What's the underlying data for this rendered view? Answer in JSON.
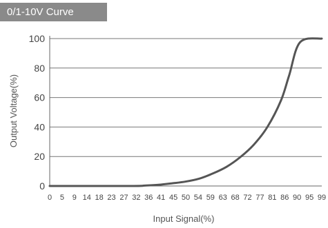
{
  "chart_data": {
    "type": "line",
    "title": "0/1-10V Curve",
    "xlabel": "Input Signal(%)",
    "ylabel": "Output Voltage(%)",
    "x_ticks": [
      "0",
      "5",
      "9",
      "14",
      "18",
      "23",
      "27",
      "32",
      "36",
      "41",
      "45",
      "50",
      "54",
      "59",
      "63",
      "68",
      "72",
      "77",
      "81",
      "86",
      "90",
      "95",
      "99"
    ],
    "y_ticks": [
      "0",
      "20",
      "40",
      "60",
      "80",
      "100"
    ],
    "xlim": [
      0,
      100
    ],
    "ylim": [
      0,
      100
    ],
    "grid": "horizontal",
    "series": [
      {
        "color": "#555555",
        "x": [
          0,
          30,
          35,
          40,
          45,
          50,
          55,
          60,
          65,
          70,
          75,
          80,
          85,
          88,
          92,
          100
        ],
        "y": [
          0,
          0,
          0.3,
          0.8,
          1.8,
          3,
          5,
          8.5,
          13,
          19.5,
          28,
          40,
          58,
          75,
          97.5,
          100
        ]
      }
    ]
  }
}
